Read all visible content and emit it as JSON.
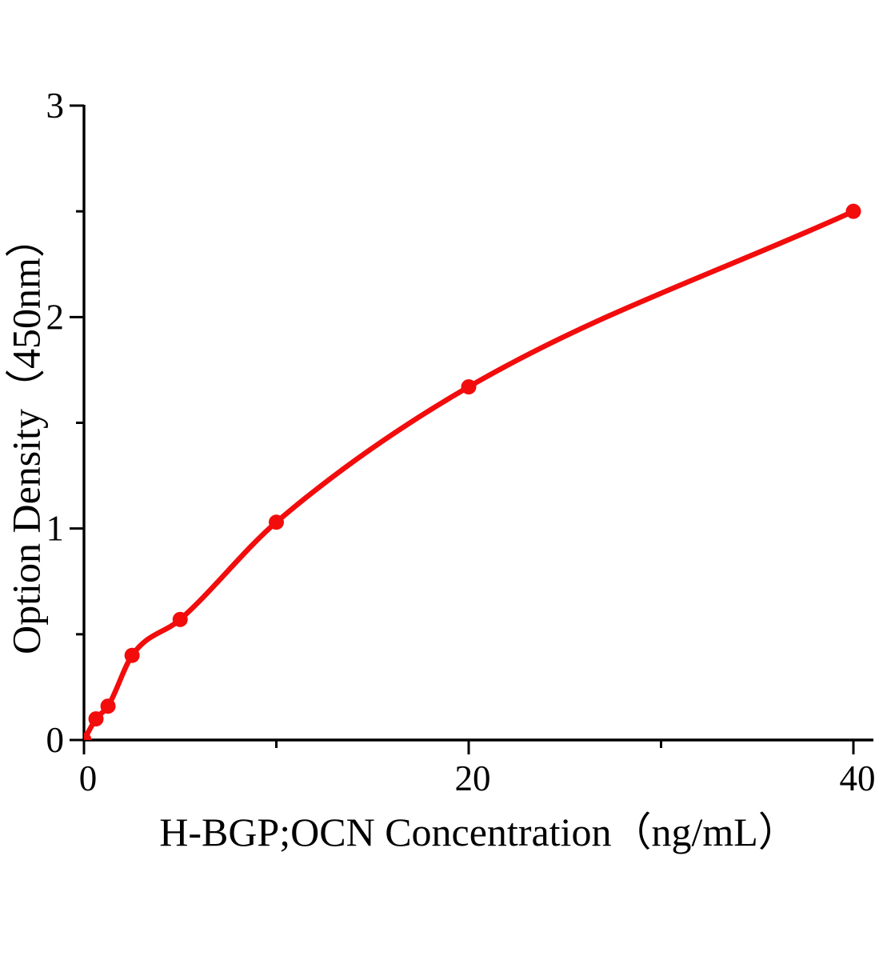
{
  "figure": {
    "background": "#ffffff"
  },
  "chart_data": {
    "type": "scatter",
    "subtype": "elisa-standard-curve (scatter points with smooth fitted line)",
    "title": "",
    "xlabel": "H-BGP;OCN Concentration（ng/mL）",
    "ylabel": "Option Density（450nm）",
    "points": [
      {
        "x": 0,
        "y": 0
      },
      {
        "x": 0.625,
        "y": 0.1
      },
      {
        "x": 1.25,
        "y": 0.16
      },
      {
        "x": 2.5,
        "y": 0.4
      },
      {
        "x": 5,
        "y": 0.57
      },
      {
        "x": 10,
        "y": 1.03
      },
      {
        "x": 20,
        "y": 1.67
      },
      {
        "x": 40,
        "y": 2.5
      }
    ],
    "xlim": [
      0,
      41
    ],
    "ylim": [
      0,
      3
    ],
    "x_major_ticks": [
      0,
      20,
      40
    ],
    "x_minor_ticks": [
      10,
      30
    ],
    "y_major_ticks": [
      0,
      1,
      2,
      3
    ],
    "y_minor_ticks": [
      0.5,
      1.5,
      2.5
    ],
    "grid": false,
    "legend": "none",
    "colors": {
      "curve": "#f20c0c",
      "marker": "#f20c0c",
      "axis": "#000000",
      "text": "#000000"
    }
  }
}
